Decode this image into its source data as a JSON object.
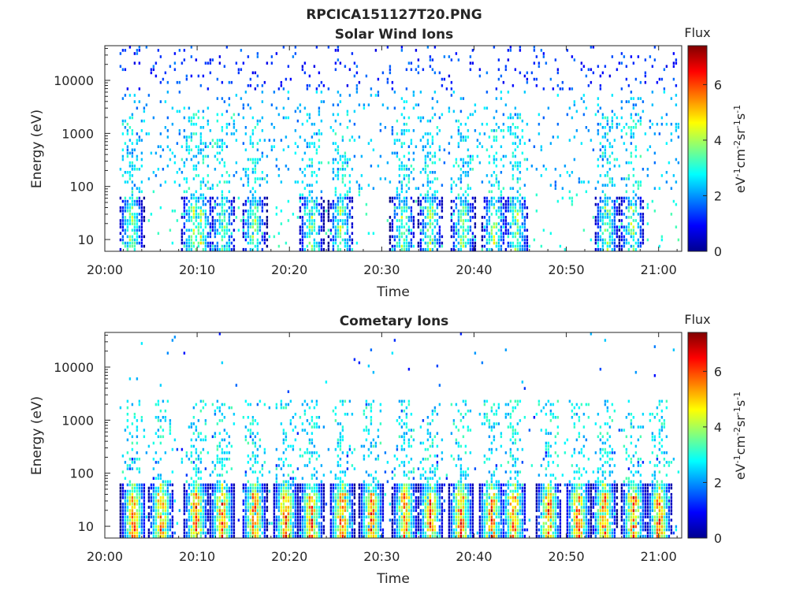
{
  "figure_title": "RPCICA151127T20.PNG",
  "colormap": [
    "#00008f",
    "#0000ff",
    "#0080ff",
    "#00ffff",
    "#80ff80",
    "#ffff00",
    "#ff8000",
    "#ff0000",
    "#800000"
  ],
  "chart_data": [
    {
      "type": "heatmap",
      "title": "Solar Wind Ions",
      "xlabel": "Time",
      "ylabel": "Energy (eV)",
      "x_ticks": [
        "20:00",
        "20:10",
        "20:20",
        "20:30",
        "20:40",
        "20:50",
        "21:00"
      ],
      "x_range_minutes": [
        0,
        62.5
      ],
      "y_scale": "log",
      "y_ticks": [
        "10",
        "100",
        "1000",
        "10000"
      ],
      "y_range": [
        6,
        45000
      ],
      "colorbar": {
        "label": "Flux",
        "units": "eV-1cm-2sr-1s-1",
        "ticks": [
          "0",
          "2",
          "4",
          "6"
        ],
        "range": [
          0,
          7.4
        ]
      },
      "bursts_minutes": [
        2.8,
        9.5,
        10.3,
        12.7,
        16.1,
        22.3,
        25.5,
        32.2,
        35.2,
        38.7,
        42.1,
        44.5,
        54.3,
        57.0
      ],
      "data_start_minute": 1.6,
      "seed": 7,
      "density": 0.55,
      "peak_flux": 5.0,
      "background": "sparse"
    },
    {
      "type": "heatmap",
      "title": "Cometary Ions",
      "xlabel": "Time",
      "ylabel": "Energy (eV)",
      "x_ticks": [
        "20:00",
        "20:10",
        "20:20",
        "20:30",
        "20:40",
        "20:50",
        "21:00"
      ],
      "x_range_minutes": [
        0,
        62.5
      ],
      "y_scale": "log",
      "y_ticks": [
        "10",
        "100",
        "1000",
        "10000"
      ],
      "y_range": [
        6,
        45000
      ],
      "colorbar": {
        "label": "Flux",
        "units": "eV-1cm-2sr-1s-1",
        "ticks": [
          "0",
          "2",
          "4",
          "6"
        ],
        "range": [
          0,
          7.4
        ]
      },
      "bursts_minutes": [
        3.0,
        6.0,
        9.8,
        12.6,
        16.1,
        19.5,
        22.3,
        25.6,
        28.8,
        32.4,
        35.2,
        38.5,
        41.8,
        44.2,
        48.0,
        51.2,
        54.0,
        57.2,
        60.0
      ],
      "data_start_minute": 1.6,
      "seed": 19,
      "density": 0.9,
      "peak_flux": 7.2,
      "background": "low"
    }
  ]
}
